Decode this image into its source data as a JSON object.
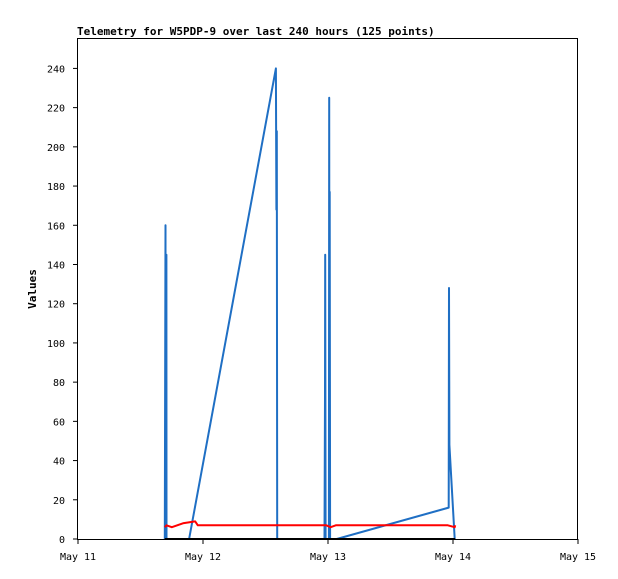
{
  "chart_data": {
    "type": "line",
    "title": "Telemetry for W5PDP-9 over last 240 hours (125 points)",
    "xlabel": "",
    "ylabel": "Values",
    "x_axis": {
      "kind": "date",
      "ticks": [
        "May 11",
        "May 12",
        "May 13",
        "May 14",
        "May 15"
      ],
      "range": [
        "2024-05-11T00:00",
        "2024-05-15T00:00"
      ]
    },
    "ylim": [
      0,
      255
    ],
    "yticks": [
      0,
      20,
      40,
      60,
      80,
      100,
      120,
      140,
      160,
      180,
      200,
      220,
      240
    ],
    "grid": false,
    "legend": "none",
    "series": [
      {
        "color": "#1f6fc4",
        "points": [
          {
            "x": "2024-05-11T16:40",
            "y": 0
          },
          {
            "x": "2024-05-11T16:48",
            "y": 160
          },
          {
            "x": "2024-05-11T16:50",
            "y": 0
          },
          {
            "x": "2024-05-11T16:58",
            "y": 145
          },
          {
            "x": "2024-05-11T17:00",
            "y": 0
          },
          {
            "x": "2024-05-11T21:20",
            "y": 0
          },
          {
            "x": "2024-05-12T14:00",
            "y": 240
          },
          {
            "x": "2024-05-12T14:05",
            "y": 168
          },
          {
            "x": "2024-05-12T14:10",
            "y": 208
          },
          {
            "x": "2024-05-12T14:15",
            "y": 0
          },
          {
            "x": "2024-05-12T23:20",
            "y": 0
          },
          {
            "x": "2024-05-12T23:25",
            "y": 73
          },
          {
            "x": "2024-05-12T23:28",
            "y": 145
          },
          {
            "x": "2024-05-12T23:32",
            "y": 0
          },
          {
            "x": "2024-05-13T00:10",
            "y": 0
          },
          {
            "x": "2024-05-13T00:14",
            "y": 225
          },
          {
            "x": "2024-05-13T00:17",
            "y": 0
          },
          {
            "x": "2024-05-13T00:20",
            "y": 177
          },
          {
            "x": "2024-05-13T00:24",
            "y": 0
          },
          {
            "x": "2024-05-13T01:40",
            "y": 0
          },
          {
            "x": "2024-05-13T23:10",
            "y": 16
          },
          {
            "x": "2024-05-13T23:14",
            "y": 128
          },
          {
            "x": "2024-05-13T23:18",
            "y": 48
          },
          {
            "x": "2024-05-14T00:20",
            "y": 0
          }
        ]
      },
      {
        "color": "#ff0000",
        "points": [
          {
            "x": "2024-05-11T16:40",
            "y": 6
          },
          {
            "x": "2024-05-11T17:00",
            "y": 7
          },
          {
            "x": "2024-05-11T18:00",
            "y": 6
          },
          {
            "x": "2024-05-11T20:10",
            "y": 8
          },
          {
            "x": "2024-05-11T22:30",
            "y": 9
          },
          {
            "x": "2024-05-11T23:00",
            "y": 7
          },
          {
            "x": "2024-05-12T14:00",
            "y": 7
          },
          {
            "x": "2024-05-12T23:40",
            "y": 7
          },
          {
            "x": "2024-05-13T00:30",
            "y": 6
          },
          {
            "x": "2024-05-13T01:30",
            "y": 7
          },
          {
            "x": "2024-05-13T23:00",
            "y": 7
          },
          {
            "x": "2024-05-14T00:20",
            "y": 6
          },
          {
            "x": "2024-05-14T00:25",
            "y": 7
          }
        ]
      },
      {
        "color": "#000000",
        "points": [
          {
            "x": "2024-05-11T16:40",
            "y": 0
          },
          {
            "x": "2024-05-14T00:25",
            "y": 0
          }
        ]
      }
    ]
  }
}
